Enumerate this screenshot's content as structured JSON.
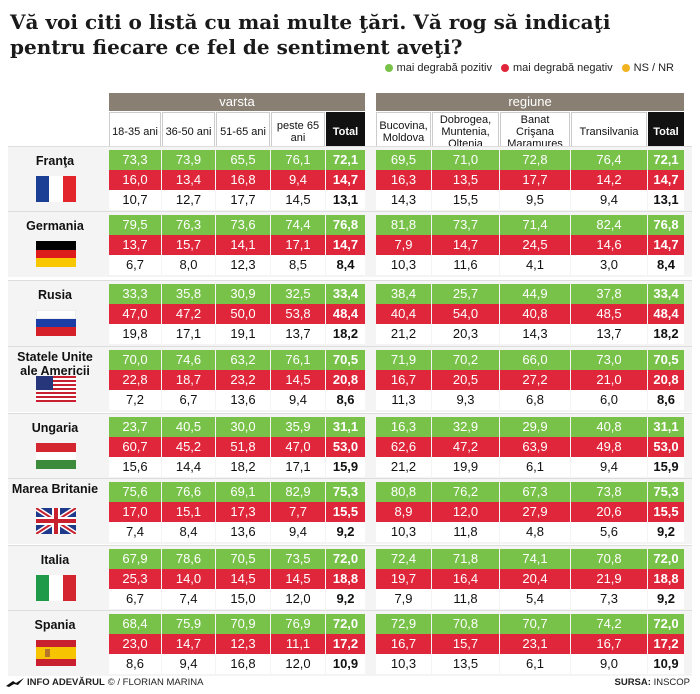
{
  "title": "Vă voi citi o listă cu mai multe ţări. Vă rog să indicaţi pentru fiecare ce fel de sentiment aveţi?",
  "legend": {
    "positive": "mai degrabă pozitiv",
    "negative": "mai degrabă negativ",
    "ns": "NS / NR"
  },
  "colors": {
    "positive": "#78c24a",
    "negative": "#e0263a",
    "ns": "#f2b320",
    "header": "#8a7f73"
  },
  "groups": {
    "varsta": "varsta",
    "regiune": "regiune"
  },
  "age_columns": [
    "18-35 ani",
    "36-50 ani",
    "51-65 ani",
    "peste 65 ani",
    "Total"
  ],
  "region_columns": [
    "Bucovina, Moldova",
    "Dobrogea, Muntenia, Oltenia",
    "Banat Crişana Maramureş",
    "Transilvania",
    "Total"
  ],
  "footer": {
    "left_brand": "INFO ADEVĂRUL",
    "left_author": "© / FLORIAN MARINA",
    "right_label": "SURSA:",
    "right_source": "INSCOP"
  },
  "chart_data": {
    "type": "table",
    "title": "Vă voi citi o listă cu mai multe ţări. Vă rog să indicaţi pentru fiecare ce fel de sentiment aveţi?",
    "rows": [
      {
        "country": "Franţa",
        "flag": "france",
        "age": {
          "positive": [
            "73,3",
            "73,9",
            "65,5",
            "76,1",
            "72,1"
          ],
          "negative": [
            "16,0",
            "13,4",
            "16,8",
            "9,4",
            "14,7"
          ],
          "ns": [
            "10,7",
            "12,7",
            "17,7",
            "14,5",
            "13,1"
          ]
        },
        "region": {
          "positive": [
            "69,5",
            "71,0",
            "72,8",
            "76,4",
            "72,1"
          ],
          "negative": [
            "16,3",
            "13,5",
            "17,7",
            "14,2",
            "14,7"
          ],
          "ns": [
            "14,3",
            "15,5",
            "9,5",
            "9,4",
            "13,1"
          ]
        }
      },
      {
        "country": "Germania",
        "flag": "germany",
        "age": {
          "positive": [
            "79,5",
            "76,3",
            "73,6",
            "74,4",
            "76,8"
          ],
          "negative": [
            "13,7",
            "15,7",
            "14,1",
            "17,1",
            "14,7"
          ],
          "ns": [
            "6,7",
            "8,0",
            "12,3",
            "8,5",
            "8,4"
          ]
        },
        "region": {
          "positive": [
            "81,8",
            "73,7",
            "71,4",
            "82,4",
            "76,8"
          ],
          "negative": [
            "7,9",
            "14,7",
            "24,5",
            "14,6",
            "14,7"
          ],
          "ns": [
            "10,3",
            "11,6",
            "4,1",
            "3,0",
            "8,4"
          ]
        }
      },
      {
        "country": "Rusia",
        "flag": "russia",
        "age": {
          "positive": [
            "33,3",
            "35,8",
            "30,9",
            "32,5",
            "33,4"
          ],
          "negative": [
            "47,0",
            "47,2",
            "50,0",
            "53,8",
            "48,4"
          ],
          "ns": [
            "19,8",
            "17,1",
            "19,1",
            "13,7",
            "18,2"
          ]
        },
        "region": {
          "positive": [
            "38,4",
            "25,7",
            "44,9",
            "37,8",
            "33,4"
          ],
          "negative": [
            "40,4",
            "54,0",
            "40,8",
            "48,5",
            "48,4"
          ],
          "ns": [
            "21,2",
            "20,3",
            "14,3",
            "13,7",
            "18,2"
          ]
        }
      },
      {
        "country": "Statele Unite ale Americii",
        "flag": "usa",
        "age": {
          "positive": [
            "70,0",
            "74,6",
            "63,2",
            "76,1",
            "70,5"
          ],
          "negative": [
            "22,8",
            "18,7",
            "23,2",
            "14,5",
            "20,8"
          ],
          "ns": [
            "7,2",
            "6,7",
            "13,6",
            "9,4",
            "8,6"
          ]
        },
        "region": {
          "positive": [
            "71,9",
            "70,2",
            "66,0",
            "73,0",
            "70,5"
          ],
          "negative": [
            "16,7",
            "20,5",
            "27,2",
            "21,0",
            "20,8"
          ],
          "ns": [
            "11,3",
            "9,3",
            "6,8",
            "6,0",
            "8,6"
          ]
        }
      },
      {
        "country": "Ungaria",
        "flag": "hungary",
        "age": {
          "positive": [
            "23,7",
            "40,5",
            "30,0",
            "35,9",
            "31,1"
          ],
          "negative": [
            "60,7",
            "45,2",
            "51,8",
            "47,0",
            "53,0"
          ],
          "ns": [
            "15,6",
            "14,4",
            "18,2",
            "17,1",
            "15,9"
          ]
        },
        "region": {
          "positive": [
            "16,3",
            "32,9",
            "29,9",
            "40,8",
            "31,1"
          ],
          "negative": [
            "62,6",
            "47,2",
            "63,9",
            "49,8",
            "53,0"
          ],
          "ns": [
            "21,2",
            "19,9",
            "6,1",
            "9,4",
            "15,9"
          ]
        }
      },
      {
        "country": "Marea Britanie",
        "flag": "uk",
        "age": {
          "positive": [
            "75,6",
            "76,6",
            "69,1",
            "82,9",
            "75,3"
          ],
          "negative": [
            "17,0",
            "15,1",
            "17,3",
            "7,7",
            "15,5"
          ],
          "ns": [
            "7,4",
            "8,4",
            "13,6",
            "9,4",
            "9,2"
          ]
        },
        "region": {
          "positive": [
            "80,8",
            "76,2",
            "67,3",
            "73,8",
            "75,3"
          ],
          "negative": [
            "8,9",
            "12,0",
            "27,9",
            "20,6",
            "15,5"
          ],
          "ns": [
            "10,3",
            "11,8",
            "4,8",
            "5,6",
            "9,2"
          ]
        }
      },
      {
        "country": "Italia",
        "flag": "italy",
        "age": {
          "positive": [
            "67,9",
            "78,6",
            "70,5",
            "73,5",
            "72,0"
          ],
          "negative": [
            "25,3",
            "14,0",
            "14,5",
            "14,5",
            "18,8"
          ],
          "ns": [
            "6,7",
            "7,4",
            "15,0",
            "12,0",
            "9,2"
          ]
        },
        "region": {
          "positive": [
            "72,4",
            "71,8",
            "74,1",
            "70,8",
            "72,0"
          ],
          "negative": [
            "19,7",
            "16,4",
            "20,4",
            "21,9",
            "18,8"
          ],
          "ns": [
            "7,9",
            "11,8",
            "5,4",
            "7,3",
            "9,2"
          ]
        }
      },
      {
        "country": "Spania",
        "flag": "spain",
        "age": {
          "positive": [
            "68,4",
            "75,9",
            "70,9",
            "76,9",
            "72,0"
          ],
          "negative": [
            "23,0",
            "14,7",
            "12,3",
            "11,1",
            "17,2"
          ],
          "ns": [
            "8,6",
            "9,4",
            "16,8",
            "12,0",
            "10,9"
          ]
        },
        "region": {
          "positive": [
            "72,9",
            "70,8",
            "70,7",
            "74,2",
            "72,0"
          ],
          "negative": [
            "16,7",
            "15,7",
            "23,1",
            "16,7",
            "17,2"
          ],
          "ns": [
            "10,3",
            "13,5",
            "6,1",
            "9,0",
            "10,9"
          ]
        }
      }
    ]
  }
}
